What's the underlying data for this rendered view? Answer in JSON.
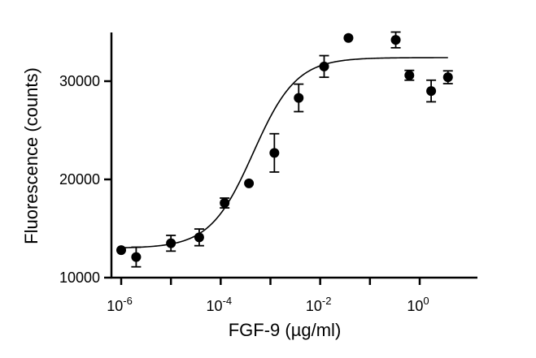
{
  "chart_data": {
    "type": "scatter",
    "title": "",
    "xlabel": "FGF-9 (µg/ml)",
    "ylabel": "Fluorescence (counts)",
    "x_scale": "log",
    "xlim": [
      1e-06,
      5
    ],
    "ylim": [
      10000,
      35000
    ],
    "x_ticks": [
      {
        "value": 1e-06,
        "base": "10",
        "exp": "-6"
      },
      {
        "value": 0.0001,
        "base": "10",
        "exp": "-4"
      },
      {
        "value": 0.01,
        "base": "10",
        "exp": "-2"
      },
      {
        "value": 1,
        "base": "10",
        "exp": "0"
      }
    ],
    "y_ticks": [
      {
        "value": 10000,
        "label": "10000"
      },
      {
        "value": 20000,
        "label": "20000"
      },
      {
        "value": 30000,
        "label": "30000"
      }
    ],
    "grid": false,
    "legend": "none",
    "series": [
      {
        "points": [
          {
            "x": 1e-06,
            "y": 12800,
            "err": 0
          },
          {
            "x": 2e-06,
            "y": 12100,
            "err": 1000
          },
          {
            "x": 1e-05,
            "y": 13500,
            "err": 800
          },
          {
            "x": 3.7e-05,
            "y": 14100,
            "err": 850
          },
          {
            "x": 0.00012,
            "y": 17600,
            "err": 500
          },
          {
            "x": 0.00037,
            "y": 19600,
            "err": 0
          },
          {
            "x": 0.0012,
            "y": 22700,
            "err": 1950
          },
          {
            "x": 0.0037,
            "y": 28300,
            "err": 1400
          },
          {
            "x": 0.012,
            "y": 31500,
            "err": 1100
          },
          {
            "x": 0.037,
            "y": 34400,
            "err": 0
          },
          {
            "x": 0.33,
            "y": 34200,
            "err": 800
          },
          {
            "x": 0.62,
            "y": 30600,
            "err": 500
          },
          {
            "x": 1.7,
            "y": 29000,
            "err": 1100
          },
          {
            "x": 3.7,
            "y": 30400,
            "err": 650
          }
        ]
      }
    ],
    "fit": {
      "model": "four-parameter logistic",
      "bottom": 13000,
      "top": 32400,
      "ec50": 0.00045,
      "hill": 1
    },
    "colors": {
      "marker": "#000000",
      "line": "#000000",
      "background": "#ffffff"
    }
  }
}
